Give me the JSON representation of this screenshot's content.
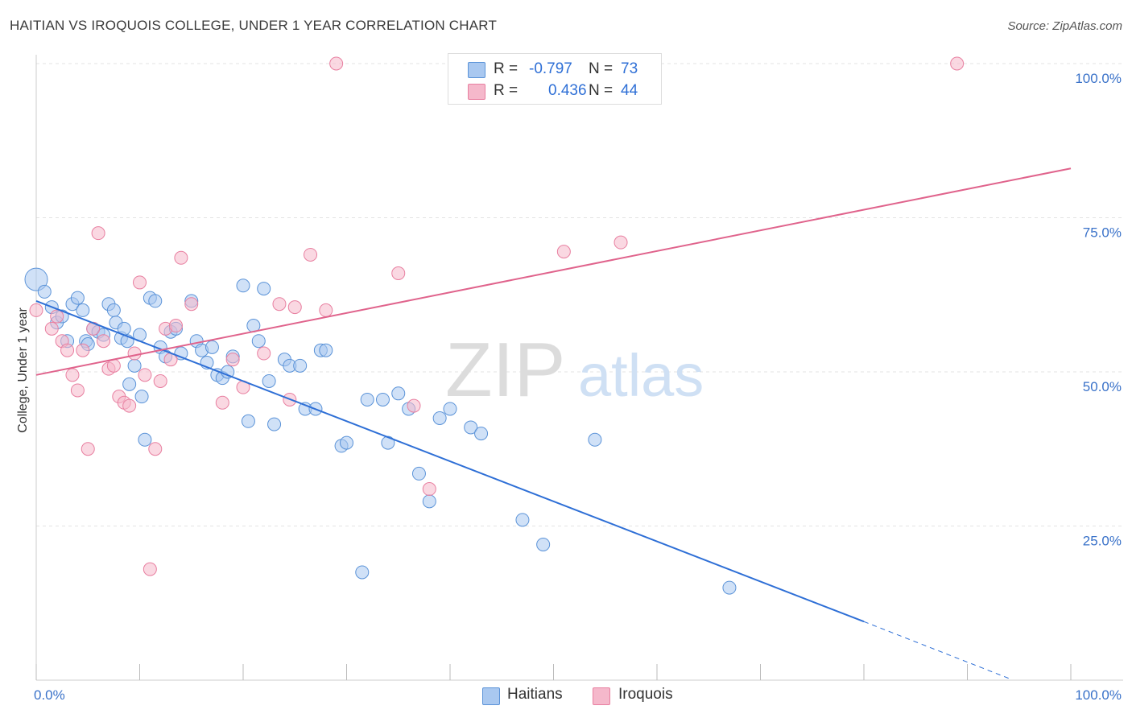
{
  "header": {
    "title": "HAITIAN VS IROQUOIS COLLEGE, UNDER 1 YEAR CORRELATION CHART",
    "source": "Source: ZipAtlas.com"
  },
  "watermark": {
    "zip": "ZIP",
    "atlas": "atlas"
  },
  "legend": {
    "rows": [
      {
        "r_label": "R =",
        "r_value": "-0.797",
        "n_label": "N =",
        "n_value": "73",
        "color": "#a9c8f0"
      },
      {
        "r_label": "R =",
        "r_value": "0.436",
        "n_label": "N =",
        "n_value": "44",
        "color": "#f5b8cb"
      }
    ]
  },
  "colors": {
    "haitians_fill": "#a9c8f0",
    "haitians_stroke": "#5b93d8",
    "haitians_line": "#2e6fd6",
    "iroquois_fill": "#f5b8cb",
    "iroquois_stroke": "#e87fa0",
    "iroquois_line": "#e0638c",
    "tick_label": "#3a72c9",
    "grid": "#e3e3e3"
  },
  "chart_data": {
    "type": "scatter",
    "ylabel": "College, Under 1 year",
    "xlim": [
      0,
      100
    ],
    "ylim": [
      0,
      100
    ],
    "x_tick_labels": [
      "0.0%",
      "100.0%"
    ],
    "y_ticks": [
      25,
      50,
      75,
      100
    ],
    "y_tick_labels": [
      "25.0%",
      "50.0%",
      "75.0%",
      "100.0%"
    ],
    "grid": true,
    "legend_position": "top-center",
    "series": [
      {
        "name": "Haitians",
        "trend": {
          "x": [
            0,
            80,
            94
          ],
          "y": [
            61.5,
            9.5,
            0.3
          ]
        },
        "points": [
          [
            0,
            65
          ],
          [
            0.8,
            63
          ],
          [
            1.5,
            60.5
          ],
          [
            2,
            58
          ],
          [
            2.5,
            59
          ],
          [
            3,
            55
          ],
          [
            3.5,
            61
          ],
          [
            4,
            62
          ],
          [
            4.5,
            60
          ],
          [
            4.8,
            55
          ],
          [
            5,
            54.5
          ],
          [
            5.5,
            57
          ],
          [
            6,
            56.5
          ],
          [
            6.5,
            56
          ],
          [
            7,
            61
          ],
          [
            7.5,
            60
          ],
          [
            7.7,
            58
          ],
          [
            8.2,
            55.5
          ],
          [
            8.5,
            57
          ],
          [
            8.8,
            55
          ],
          [
            9,
            48
          ],
          [
            9.5,
            51
          ],
          [
            10,
            56
          ],
          [
            10.2,
            46
          ],
          [
            10.5,
            39
          ],
          [
            11,
            62
          ],
          [
            11.5,
            61.5
          ],
          [
            12,
            54
          ],
          [
            12.5,
            52.5
          ],
          [
            13,
            56.5
          ],
          [
            13.5,
            57
          ],
          [
            14,
            53
          ],
          [
            15,
            61.5
          ],
          [
            15.5,
            55
          ],
          [
            16,
            53.5
          ],
          [
            16.5,
            51.5
          ],
          [
            17,
            54
          ],
          [
            17.5,
            49.5
          ],
          [
            18,
            49
          ],
          [
            18.5,
            50
          ],
          [
            19,
            52.5
          ],
          [
            20,
            64
          ],
          [
            20.5,
            42
          ],
          [
            21,
            57.5
          ],
          [
            21.5,
            55
          ],
          [
            22,
            63.5
          ],
          [
            22.5,
            48.5
          ],
          [
            23,
            41.5
          ],
          [
            24,
            52
          ],
          [
            24.5,
            51
          ],
          [
            25.5,
            51
          ],
          [
            26,
            44
          ],
          [
            27,
            44
          ],
          [
            27.5,
            53.5
          ],
          [
            28,
            53.5
          ],
          [
            29.5,
            38
          ],
          [
            30,
            38.5
          ],
          [
            31.5,
            17.5
          ],
          [
            32,
            45.5
          ],
          [
            33.5,
            45.5
          ],
          [
            34,
            38.5
          ],
          [
            35,
            46.5
          ],
          [
            36,
            44
          ],
          [
            37,
            33.5
          ],
          [
            38,
            29
          ],
          [
            39,
            42.5
          ],
          [
            40,
            44
          ],
          [
            42,
            41
          ],
          [
            43,
            40
          ],
          [
            47,
            26
          ],
          [
            49,
            22
          ],
          [
            54,
            39
          ],
          [
            67,
            15
          ]
        ]
      },
      {
        "name": "Iroquois",
        "trend": {
          "x": [
            0,
            100
          ],
          "y": [
            49.5,
            83
          ]
        },
        "points": [
          [
            0,
            60
          ],
          [
            1.5,
            57
          ],
          [
            2,
            59
          ],
          [
            2.5,
            55
          ],
          [
            3,
            53.5
          ],
          [
            3.5,
            49.5
          ],
          [
            4,
            47
          ],
          [
            4.5,
            53.5
          ],
          [
            5,
            37.5
          ],
          [
            5.5,
            57
          ],
          [
            6,
            72.5
          ],
          [
            6.5,
            55
          ],
          [
            7,
            50.5
          ],
          [
            7.5,
            51
          ],
          [
            8,
            46
          ],
          [
            8.5,
            45
          ],
          [
            9,
            44.5
          ],
          [
            9.5,
            53
          ],
          [
            10,
            64.5
          ],
          [
            10.5,
            49.5
          ],
          [
            11,
            18
          ],
          [
            11.5,
            37.5
          ],
          [
            12,
            48.5
          ],
          [
            12.5,
            57
          ],
          [
            13,
            52
          ],
          [
            13.5,
            57.5
          ],
          [
            14,
            68.5
          ],
          [
            15,
            61
          ],
          [
            18,
            45
          ],
          [
            19,
            52
          ],
          [
            20,
            47.5
          ],
          [
            22,
            53
          ],
          [
            23.5,
            61
          ],
          [
            24.5,
            45.5
          ],
          [
            25,
            60.5
          ],
          [
            26.5,
            69
          ],
          [
            28,
            60
          ],
          [
            29,
            100
          ],
          [
            36.5,
            44.5
          ],
          [
            38,
            31
          ],
          [
            51,
            69.5
          ],
          [
            56.5,
            71
          ],
          [
            89,
            100
          ],
          [
            35,
            66
          ]
        ]
      }
    ]
  },
  "bottom_legend": {
    "items": [
      "Haitians",
      "Iroquois"
    ]
  }
}
